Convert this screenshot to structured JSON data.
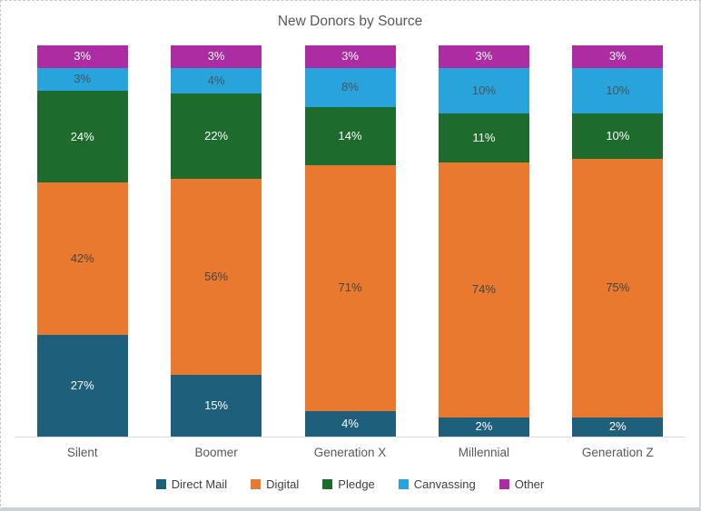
{
  "chart_data": {
    "type": "bar",
    "stacked": true,
    "percent_stacked": true,
    "title": "New Donors by Source",
    "categories": [
      "Silent",
      "Boomer",
      "Generation X",
      "Millennial",
      "Generation Z"
    ],
    "series": [
      {
        "name": "Direct Mail",
        "color": "#1E5F7C",
        "label_color": "#FFFFFF",
        "values": [
          27,
          15,
          4,
          2,
          2
        ]
      },
      {
        "name": "Digital",
        "color": "#E8792F",
        "label_color": "#454545",
        "values": [
          42,
          56,
          71,
          74,
          75
        ]
      },
      {
        "name": "Pledge",
        "color": "#1E6B2E",
        "label_color": "#FFFFFF",
        "values": [
          24,
          22,
          14,
          11,
          10
        ]
      },
      {
        "name": "Canvassing",
        "color": "#29A3DC",
        "label_color": "#48545C",
        "values": [
          3,
          4,
          8,
          10,
          10
        ]
      },
      {
        "name": "Other",
        "color": "#AE2CA3",
        "label_color": "#FFFFFF",
        "values": [
          3,
          3,
          3,
          3,
          3
        ]
      }
    ],
    "value_suffix": "%",
    "data_labels": true,
    "legend_position": "bottom",
    "grid": false,
    "ylim": [
      0,
      100
    ],
    "axis_line_color": "#D9D9D9",
    "title_color": "#595959",
    "category_label_color": "#595959",
    "legend_text_color": "#3F3F3F"
  }
}
